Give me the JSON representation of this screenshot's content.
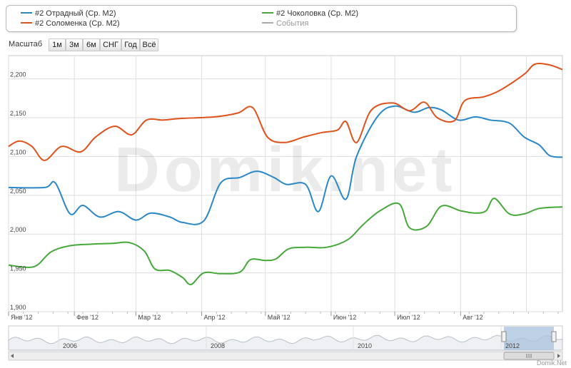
{
  "legend": {
    "items": [
      {
        "label": "#2 Отрадный (Ср. М2)",
        "color": "#2a87c8"
      },
      {
        "label": "#2 Чоколовка (Ср. М2)",
        "color": "#45a93a"
      },
      {
        "label": "#2 Соломенка (Ср. М2)",
        "color": "#e0521c"
      },
      {
        "label": "События",
        "color": "#aaaaaa"
      }
    ]
  },
  "zoom": {
    "label": "Масштаб",
    "buttons": [
      "1м",
      "3м",
      "6м",
      "СНГ",
      "Год",
      "Всё"
    ]
  },
  "watermark": "Domik.net",
  "credit": "Domik.Net",
  "navigator": {
    "year_labels": [
      "2006",
      "2008",
      "2010",
      "2012"
    ]
  },
  "chart_data": {
    "type": "line",
    "title": "",
    "xlabel": "",
    "ylabel": "",
    "x_ticks": [
      "Янв '12",
      "Фев '12",
      "Мар '12",
      "Апр '12",
      "Май '12",
      "Июн '12",
      "Июл '12",
      "Авг '12"
    ],
    "y_ticks": [
      "1,900",
      "1,950",
      "2,000",
      "2,050",
      "2,100",
      "2,150",
      "2,200"
    ],
    "ylim": [
      1900,
      2230
    ],
    "xlim": [
      "2012-01-01",
      "2012-09-18"
    ],
    "grid": true,
    "legend_position": "top",
    "series": [
      {
        "name": "#2 Отрадный (Ср. М2)",
        "color": "#2a87c8",
        "points": [
          [
            "2012-01-01",
            2060
          ],
          [
            "2012-01-18",
            2060
          ],
          [
            "2012-01-23",
            2066
          ],
          [
            "2012-01-30",
            2026
          ],
          [
            "2012-02-05",
            2037
          ],
          [
            "2012-02-13",
            2022
          ],
          [
            "2012-02-22",
            2029
          ],
          [
            "2012-03-01",
            2018
          ],
          [
            "2012-03-08",
            2027
          ],
          [
            "2012-03-17",
            2022
          ],
          [
            "2012-03-23",
            2015
          ],
          [
            "2012-04-02",
            2017
          ],
          [
            "2012-04-10",
            2066
          ],
          [
            "2012-04-19",
            2073
          ],
          [
            "2012-04-27",
            2081
          ],
          [
            "2012-05-05",
            2073
          ],
          [
            "2012-05-11",
            2064
          ],
          [
            "2012-05-20",
            2064
          ],
          [
            "2012-05-26",
            2029
          ],
          [
            "2012-06-01",
            2075
          ],
          [
            "2012-06-08",
            2045
          ],
          [
            "2012-06-13",
            2100
          ],
          [
            "2012-06-23",
            2152
          ],
          [
            "2012-07-01",
            2165
          ],
          [
            "2012-07-10",
            2157
          ],
          [
            "2012-07-17",
            2163
          ],
          [
            "2012-07-23",
            2160
          ],
          [
            "2012-07-31",
            2147
          ],
          [
            "2012-08-08",
            2151
          ],
          [
            "2012-08-15",
            2147
          ],
          [
            "2012-08-24",
            2143
          ],
          [
            "2012-08-31",
            2125
          ],
          [
            "2012-09-07",
            2115
          ],
          [
            "2012-09-12",
            2101
          ],
          [
            "2012-09-18",
            2099
          ]
        ]
      },
      {
        "name": "#2 Чоколовка (Ср. М2)",
        "color": "#45a93a",
        "points": [
          [
            "2012-01-01",
            1960
          ],
          [
            "2012-01-13",
            1958
          ],
          [
            "2012-01-21",
            1977
          ],
          [
            "2012-01-30",
            1985
          ],
          [
            "2012-02-09",
            1987
          ],
          [
            "2012-02-19",
            1988
          ],
          [
            "2012-02-27",
            1989
          ],
          [
            "2012-03-05",
            1978
          ],
          [
            "2012-03-10",
            1955
          ],
          [
            "2012-03-17",
            1953
          ],
          [
            "2012-03-23",
            1944
          ],
          [
            "2012-03-27",
            1935
          ],
          [
            "2012-04-02",
            1950
          ],
          [
            "2012-04-10",
            1949
          ],
          [
            "2012-04-19",
            1951
          ],
          [
            "2012-04-24",
            1967
          ],
          [
            "2012-05-01",
            1966
          ],
          [
            "2012-05-06",
            1968
          ],
          [
            "2012-05-12",
            1981
          ],
          [
            "2012-05-20",
            1983
          ],
          [
            "2012-05-30",
            1983
          ],
          [
            "2012-06-09",
            1993
          ],
          [
            "2012-06-16",
            2012
          ],
          [
            "2012-06-24",
            2030
          ],
          [
            "2012-07-03",
            2039
          ],
          [
            "2012-07-08",
            2008
          ],
          [
            "2012-07-16",
            2010
          ],
          [
            "2012-07-23",
            2036
          ],
          [
            "2012-08-01",
            2030
          ],
          [
            "2012-08-08",
            2027
          ],
          [
            "2012-08-13",
            2030
          ],
          [
            "2012-08-17",
            2046
          ],
          [
            "2012-08-24",
            2026
          ],
          [
            "2012-08-31",
            2026
          ],
          [
            "2012-09-07",
            2033
          ],
          [
            "2012-09-18",
            2035
          ]
        ]
      },
      {
        "name": "#2 Соломенка (Ср. М2)",
        "color": "#e0521c",
        "points": [
          [
            "2012-01-01",
            2113
          ],
          [
            "2012-01-06",
            2120
          ],
          [
            "2012-01-12",
            2113
          ],
          [
            "2012-01-18",
            2095
          ],
          [
            "2012-01-26",
            2113
          ],
          [
            "2012-02-04",
            2106
          ],
          [
            "2012-02-11",
            2125
          ],
          [
            "2012-02-20",
            2139
          ],
          [
            "2012-02-28",
            2128
          ],
          [
            "2012-03-06",
            2147
          ],
          [
            "2012-03-14",
            2147
          ],
          [
            "2012-03-22",
            2149
          ],
          [
            "2012-04-07",
            2151
          ],
          [
            "2012-04-18",
            2156
          ],
          [
            "2012-04-25",
            2163
          ],
          [
            "2012-05-02",
            2125
          ],
          [
            "2012-05-10",
            2118
          ],
          [
            "2012-05-19",
            2125
          ],
          [
            "2012-05-28",
            2131
          ],
          [
            "2012-06-04",
            2134
          ],
          [
            "2012-06-08",
            2145
          ],
          [
            "2012-06-13",
            2118
          ],
          [
            "2012-06-20",
            2160
          ],
          [
            "2012-06-30",
            2169
          ],
          [
            "2012-07-08",
            2159
          ],
          [
            "2012-07-15",
            2170
          ],
          [
            "2012-07-21",
            2150
          ],
          [
            "2012-07-29",
            2146
          ],
          [
            "2012-08-03",
            2172
          ],
          [
            "2012-08-12",
            2177
          ],
          [
            "2012-08-20",
            2186
          ],
          [
            "2012-08-31",
            2206
          ],
          [
            "2012-09-05",
            2219
          ],
          [
            "2012-09-12",
            2218
          ],
          [
            "2012-09-18",
            2212
          ]
        ]
      }
    ]
  }
}
